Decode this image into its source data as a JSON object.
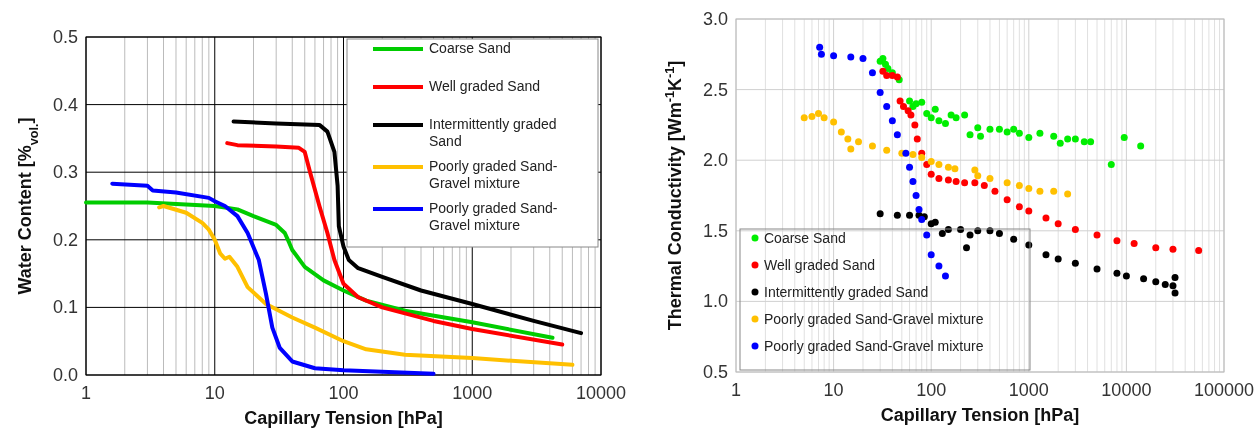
{
  "chart_data": [
    {
      "type": "line",
      "xlabel": "Capillary  Tension  [hPa]",
      "ylabel": "Water Content [%$_{vol.}$]",
      "log": "x",
      "grid": true,
      "legend": "top right",
      "marker": "none",
      "line_style": "solid",
      "xlim": [
        1,
        10000
      ],
      "xticks": [
        1,
        10,
        100,
        1000,
        10000
      ],
      "ylim": [
        0,
        0.5
      ],
      "yticks": [
        {
          "value": 0,
          "label": "0.0"
        },
        0.1,
        0.2,
        0.3,
        0.4,
        0.5
      ],
      "series": [
        {
          "name": "Coarse Sand",
          "color": "#00cc00",
          "x": [
            1,
            3,
            10,
            15,
            20,
            30,
            35,
            38,
            40,
            50,
            70,
            100,
            150,
            300,
            1000,
            4200
          ],
          "values": [
            0.255,
            0.255,
            0.25,
            0.245,
            0.235,
            0.222,
            0.21,
            0.195,
            0.185,
            0.16,
            0.14,
            0.125,
            0.11,
            0.095,
            0.078,
            0.055
          ]
        },
        {
          "name": "Well graded Sand",
          "color": "#ff0000",
          "x": [
            12.5,
            15,
            30,
            45,
            50,
            55,
            65,
            75,
            85,
            100,
            130,
            200,
            500,
            1000,
            5000
          ],
          "values": [
            0.343,
            0.34,
            0.338,
            0.336,
            0.33,
            0.3,
            0.25,
            0.21,
            0.17,
            0.135,
            0.115,
            0.1,
            0.08,
            0.068,
            0.045
          ]
        },
        {
          "name": "Intermittently graded Sand",
          "color": "#000000",
          "x": [
            14,
            30,
            65,
            75,
            85,
            90,
            92,
            100,
            110,
            130,
            200,
            400,
            1000,
            3000,
            7000
          ],
          "values": [
            0.375,
            0.372,
            0.37,
            0.36,
            0.33,
            0.28,
            0.22,
            0.19,
            0.17,
            0.158,
            0.145,
            0.125,
            0.105,
            0.08,
            0.062
          ]
        },
        {
          "name": "Poorly graded Sand-Gravel mixture",
          "color": "#ffc000",
          "x": [
            3.7,
            4,
            6,
            8,
            9,
            10,
            11,
            12,
            13,
            15,
            18,
            25,
            40,
            60,
            100,
            150,
            300,
            1000,
            6000
          ],
          "values": [
            0.248,
            0.25,
            0.24,
            0.225,
            0.215,
            0.2,
            0.18,
            0.172,
            0.175,
            0.16,
            0.13,
            0.105,
            0.085,
            0.07,
            0.05,
            0.038,
            0.03,
            0.025,
            0.015
          ]
        },
        {
          "name": "Poorly graded Sand-Gravel mixture",
          "color": "#0000ff",
          "x": [
            1.6,
            3,
            3.3,
            5,
            9,
            10,
            12,
            15,
            18,
            22,
            25,
            28,
            32,
            40,
            60,
            100,
            500
          ],
          "values": [
            0.283,
            0.28,
            0.273,
            0.27,
            0.262,
            0.257,
            0.25,
            0.235,
            0.21,
            0.17,
            0.12,
            0.07,
            0.04,
            0.02,
            0.01,
            0.007,
            0.002
          ]
        }
      ]
    },
    {
      "type": "scatter",
      "xlabel": "Capillary  Tension  [hPa]",
      "ylabel": "Thermal Conductivity [Wm$^{-1}$K$^{-1}$]",
      "log": "x",
      "grid": true,
      "legend": "bottom left",
      "marker": "circle",
      "xlim": [
        1,
        100000
      ],
      "xticks": [
        1,
        10,
        100,
        1000,
        10000,
        100000
      ],
      "ylim": [
        0.5,
        3
      ],
      "yticks": [
        0.5,
        {
          "value": 1,
          "label": "1.0"
        },
        1.5,
        {
          "value": 2,
          "label": "2.0"
        },
        2.5,
        {
          "value": 3,
          "label": "3.0"
        }
      ],
      "series": [
        {
          "name": "Coarse Sand",
          "color": "#00ee00",
          "x": [
            30,
            32,
            34,
            36,
            40,
            47,
            60,
            65,
            70,
            80,
            90,
            100,
            110,
            120,
            140,
            160,
            180,
            220,
            250,
            300,
            320,
            400,
            500,
            600,
            700,
            800,
            1000,
            1300,
            1800,
            2100,
            2500,
            3000,
            3700,
            4300,
            7000,
            9500,
            14000
          ],
          "values": [
            2.7,
            2.72,
            2.68,
            2.65,
            2.62,
            2.57,
            2.42,
            2.38,
            2.4,
            2.41,
            2.33,
            2.3,
            2.36,
            2.28,
            2.26,
            2.32,
            2.3,
            2.32,
            2.18,
            2.23,
            2.17,
            2.22,
            2.22,
            2.2,
            2.22,
            2.19,
            2.16,
            2.19,
            2.17,
            2.12,
            2.15,
            2.15,
            2.13,
            2.13,
            1.97,
            2.16,
            2.1
          ]
        },
        {
          "name": "Well graded Sand",
          "color": "#ff0000",
          "x": [
            32,
            35,
            40,
            45,
            48,
            52,
            58,
            62,
            68,
            72,
            80,
            90,
            100,
            120,
            150,
            180,
            220,
            280,
            350,
            450,
            600,
            800,
            1000,
            1500,
            2000,
            3000,
            5000,
            8000,
            12000,
            20000,
            30000,
            55000
          ],
          "values": [
            2.63,
            2.6,
            2.6,
            2.59,
            2.42,
            2.38,
            2.35,
            2.32,
            2.25,
            2.15,
            2.05,
            1.97,
            1.9,
            1.87,
            1.86,
            1.85,
            1.84,
            1.84,
            1.82,
            1.78,
            1.72,
            1.67,
            1.64,
            1.59,
            1.55,
            1.51,
            1.47,
            1.43,
            1.41,
            1.38,
            1.37,
            1.36
          ]
        },
        {
          "name": "Intermittently graded Sand",
          "color": "#000000",
          "x": [
            30,
            45,
            60,
            75,
            85,
            100,
            110,
            130,
            150,
            200,
            230,
            250,
            300,
            400,
            500,
            700,
            1000,
            1500,
            2000,
            3000,
            5000,
            8000,
            10000,
            15000,
            20000,
            25000,
            30000,
            31500,
            31500
          ],
          "values": [
            1.62,
            1.61,
            1.61,
            1.61,
            1.6,
            1.55,
            1.56,
            1.48,
            1.51,
            1.51,
            1.38,
            1.47,
            1.5,
            1.5,
            1.48,
            1.44,
            1.4,
            1.33,
            1.3,
            1.27,
            1.23,
            1.2,
            1.18,
            1.16,
            1.14,
            1.12,
            1.11,
            1.17,
            1.06
          ]
        },
        {
          "name": "Poorly graded Sand-Gravel mixture",
          "color": "#ffc000",
          "x": [
            5,
            6,
            7,
            8,
            10,
            12,
            14,
            15,
            18,
            25,
            35,
            50,
            65,
            80,
            100,
            120,
            150,
            175,
            280,
            300,
            400,
            600,
            800,
            1000,
            1300,
            1800,
            2500
          ],
          "values": [
            2.3,
            2.31,
            2.33,
            2.3,
            2.27,
            2.2,
            2.15,
            2.08,
            2.13,
            2.1,
            2.07,
            2.05,
            2.04,
            2.02,
            1.99,
            1.97,
            1.95,
            1.94,
            1.93,
            1.89,
            1.87,
            1.84,
            1.82,
            1.8,
            1.78,
            1.78,
            1.76
          ]
        },
        {
          "name": "Poorly graded Sand-Gravel mixture",
          "color": "#0000ff",
          "x": [
            7.2,
            7.5,
            10,
            15,
            20,
            25,
            30,
            35,
            40,
            45,
            55,
            60,
            65,
            70,
            75,
            80,
            90,
            100,
            120,
            140
          ],
          "values": [
            2.8,
            2.75,
            2.74,
            2.73,
            2.72,
            2.62,
            2.48,
            2.38,
            2.28,
            2.18,
            2.05,
            1.95,
            1.85,
            1.75,
            1.65,
            1.58,
            1.47,
            1.33,
            1.25,
            1.18
          ]
        }
      ]
    }
  ]
}
